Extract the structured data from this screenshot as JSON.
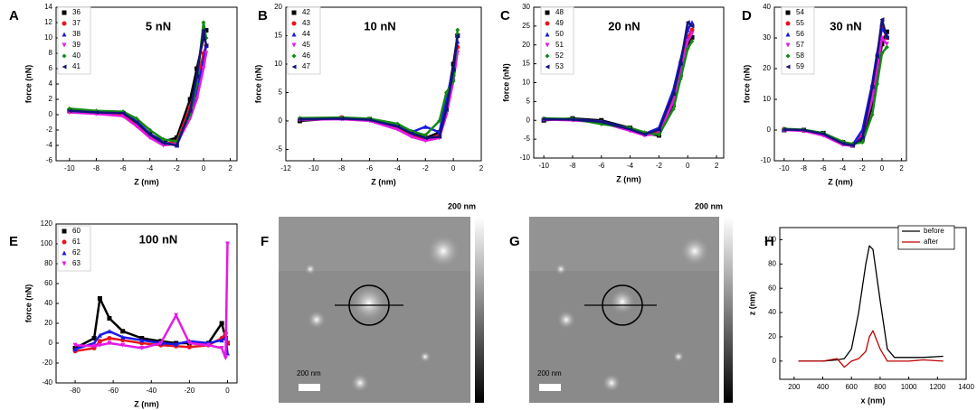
{
  "chart_data": [
    {
      "type": "line",
      "panel": "A",
      "title": "5 nN",
      "xlabel": "Z (nm)",
      "ylabel": "force (nN)",
      "markers": true,
      "x": [
        -10,
        -8,
        -6,
        -5,
        -4,
        -3,
        -2,
        -1,
        -0.5,
        0,
        0.2
      ],
      "series": [
        {
          "name": "36",
          "color": "#000000",
          "marker": "square",
          "values": [
            0.5,
            0.3,
            0.2,
            -1,
            -2.5,
            -3.5,
            -3,
            2,
            6,
            10,
            11
          ]
        },
        {
          "name": "37",
          "color": "#e8141c",
          "marker": "circle",
          "values": [
            0.4,
            0.2,
            0,
            -1.2,
            -2.8,
            -3.8,
            -3.5,
            1,
            4,
            8,
            9
          ]
        },
        {
          "name": "38",
          "color": "#1a1ae6",
          "marker": "triangle-up",
          "values": [
            0.6,
            0.4,
            0.3,
            -0.8,
            -2.5,
            -3.6,
            -4,
            0,
            3,
            7,
            9
          ]
        },
        {
          "name": "39",
          "color": "#e619e6",
          "marker": "triangle-down",
          "values": [
            0.3,
            0.1,
            -0.2,
            -1.5,
            -3,
            -4,
            -3.8,
            -0.5,
            2,
            6,
            8
          ]
        },
        {
          "name": "40",
          "color": "#138a13",
          "marker": "diamond",
          "values": [
            0.8,
            0.5,
            0.4,
            -0.5,
            -2,
            -3.2,
            -3.5,
            0,
            4,
            12,
            10
          ]
        },
        {
          "name": "41",
          "color": "#14147a",
          "marker": "triangle-left",
          "values": [
            0.5,
            0.3,
            0.2,
            -1,
            -2.6,
            -3.7,
            -4,
            0.5,
            5,
            11,
            9
          ]
        }
      ],
      "xlim": [
        -11,
        2.5
      ],
      "ylim": [
        -6,
        14
      ],
      "xticks": [
        -10,
        -8,
        -6,
        -4,
        -2,
        0,
        2
      ],
      "yticks": [
        -6,
        -4,
        -2,
        0,
        2,
        4,
        6,
        8,
        10,
        12,
        14
      ]
    },
    {
      "type": "line",
      "panel": "B",
      "title": "10 nN",
      "xlabel": "Z (nm)",
      "ylabel": "force (nN)",
      "markers": true,
      "x": [
        -11,
        -8,
        -6,
        -4,
        -3,
        -2,
        -1,
        -0.5,
        0,
        0.3
      ],
      "series": [
        {
          "name": "42",
          "color": "#000000",
          "marker": "square",
          "values": [
            0,
            0.5,
            0.3,
            -1,
            -2,
            -3,
            -2,
            3,
            10,
            15
          ]
        },
        {
          "name": "43",
          "color": "#e8141c",
          "marker": "circle",
          "values": [
            0.3,
            0.6,
            0.2,
            -1.2,
            -2.5,
            -3.2,
            -2.5,
            2,
            8,
            13
          ]
        },
        {
          "name": "44",
          "color": "#1a1ae6",
          "marker": "triangle-up",
          "values": [
            0.4,
            0.5,
            0.3,
            -0.8,
            -2,
            -1,
            -2,
            4,
            9,
            14
          ]
        },
        {
          "name": "45",
          "color": "#e619e6",
          "marker": "triangle-down",
          "values": [
            0.2,
            0.3,
            0,
            -1.5,
            -2.8,
            -3.5,
            -3,
            1,
            7,
            12
          ]
        },
        {
          "name": "46",
          "color": "#138a13",
          "marker": "diamond",
          "values": [
            0.5,
            0.6,
            0.4,
            -0.5,
            -1.8,
            -2.5,
            0,
            5,
            7,
            16
          ]
        },
        {
          "name": "47",
          "color": "#14147a",
          "marker": "triangle-left",
          "values": [
            0.3,
            0.4,
            0.2,
            -1,
            -2.2,
            -3,
            -2.8,
            2,
            9,
            15
          ]
        }
      ],
      "xlim": [
        -12,
        2
      ],
      "ylim": [
        -7,
        20
      ],
      "xticks": [
        -12,
        -10,
        -8,
        -6,
        -4,
        -2,
        0,
        2
      ],
      "yticks": [
        -5,
        0,
        5,
        10,
        15,
        20
      ]
    },
    {
      "type": "line",
      "panel": "C",
      "title": "20 nN",
      "xlabel": "Z (nm)",
      "ylabel": "force (nN)",
      "markers": true,
      "x": [
        -10,
        -8,
        -6,
        -4,
        -3,
        -2,
        -1,
        -0.5,
        0,
        0.3
      ],
      "series": [
        {
          "name": "48",
          "color": "#000000",
          "marker": "square",
          "values": [
            0,
            0.5,
            0,
            -2,
            -3.5,
            -4,
            4,
            12,
            20,
            22
          ]
        },
        {
          "name": "49",
          "color": "#e8141c",
          "marker": "circle",
          "values": [
            0.3,
            0.2,
            -0.5,
            -2.5,
            -3.8,
            -3,
            6,
            14,
            22,
            24
          ]
        },
        {
          "name": "50",
          "color": "#1a1ae6",
          "marker": "triangle-up",
          "values": [
            0.4,
            0.3,
            -0.3,
            -2.2,
            -3.6,
            -2,
            8,
            16,
            24,
            26
          ]
        },
        {
          "name": "51",
          "color": "#e619e6",
          "marker": "triangle-down",
          "values": [
            0.2,
            0,
            -0.6,
            -2.8,
            -4,
            -3.5,
            5,
            13,
            21,
            23
          ]
        },
        {
          "name": "52",
          "color": "#138a13",
          "marker": "diamond",
          "values": [
            0.5,
            0.4,
            -1,
            -2,
            -3.2,
            -3.8,
            3,
            11,
            19,
            21
          ]
        },
        {
          "name": "53",
          "color": "#14147a",
          "marker": "triangle-left",
          "values": [
            0.3,
            0.2,
            -0.4,
            -2.4,
            -3.7,
            -2.5,
            7,
            15,
            26,
            25
          ]
        }
      ],
      "xlim": [
        -10.7,
        2.5
      ],
      "ylim": [
        -10,
        30
      ],
      "xticks": [
        -10,
        -8,
        -6,
        -4,
        -2,
        0,
        2
      ],
      "yticks": [
        -10,
        -5,
        0,
        5,
        10,
        15,
        20,
        25,
        30
      ]
    },
    {
      "type": "line",
      "panel": "D",
      "title": "30 nN",
      "xlabel": "Z (nm)",
      "ylabel": "force (nN)",
      "markers": true,
      "x": [
        -10,
        -8,
        -6,
        -4,
        -3,
        -2,
        -1,
        -0.5,
        0,
        0.5
      ],
      "series": [
        {
          "name": "54",
          "color": "#000000",
          "marker": "square",
          "values": [
            0,
            0,
            -1,
            -4,
            -5,
            -3,
            8,
            18,
            28,
            32
          ]
        },
        {
          "name": "55",
          "color": "#e8141c",
          "marker": "circle",
          "values": [
            0.3,
            -0.2,
            -1.5,
            -4.5,
            -5,
            -1,
            12,
            22,
            34,
            30
          ]
        },
        {
          "name": "56",
          "color": "#1a1ae6",
          "marker": "triangle-up",
          "values": [
            0.2,
            0,
            -1.2,
            -4.2,
            -4.8,
            0,
            15,
            25,
            33,
            31
          ]
        },
        {
          "name": "57",
          "color": "#e619e6",
          "marker": "triangle-down",
          "values": [
            0,
            -0.3,
            -1.8,
            -4.8,
            -5.2,
            -2,
            10,
            20,
            30,
            28
          ]
        },
        {
          "name": "58",
          "color": "#138a13",
          "marker": "diamond",
          "values": [
            0.4,
            0.1,
            -1,
            -3.8,
            -4.5,
            -4,
            5,
            15,
            25,
            27
          ]
        },
        {
          "name": "59",
          "color": "#14147a",
          "marker": "triangle-left",
          "values": [
            0.2,
            0,
            -1.3,
            -4.4,
            -5,
            -2.5,
            14,
            24,
            36,
            30
          ]
        }
      ],
      "xlim": [
        -11,
        2.5
      ],
      "ylim": [
        -10,
        40
      ],
      "xticks": [
        -10,
        -8,
        -6,
        -4,
        -2,
        0,
        2
      ],
      "yticks": [
        -10,
        0,
        10,
        20,
        30,
        40
      ]
    },
    {
      "type": "line",
      "panel": "E",
      "title": "100 nN",
      "xlabel": "Z (nm)",
      "ylabel": "force (nN)",
      "markers": true,
      "x": [
        -80,
        -70,
        -67,
        -62,
        -55,
        -45,
        -35,
        -27,
        -20,
        -10,
        -3,
        -1,
        0
      ],
      "series": [
        {
          "name": "60",
          "color": "#000000",
          "marker": "square",
          "values": [
            -5,
            5,
            45,
            25,
            12,
            5,
            2,
            0,
            0,
            0,
            20,
            5,
            0
          ]
        },
        {
          "name": "61",
          "color": "#e8141c",
          "marker": "circle",
          "values": [
            -8,
            -5,
            2,
            5,
            3,
            0,
            -2,
            -3,
            -4,
            -2,
            5,
            10,
            0
          ]
        },
        {
          "name": "62",
          "color": "#1a1ae6",
          "marker": "triangle-up",
          "values": [
            -6,
            0,
            8,
            12,
            6,
            3,
            0,
            -1,
            2,
            0,
            3,
            5,
            -10
          ]
        },
        {
          "name": "63",
          "color": "#e619e6",
          "marker": "triangle-down",
          "values": [
            -2,
            -3,
            -2,
            0,
            -2,
            -5,
            0,
            28,
            0,
            -2,
            -5,
            -15,
            100
          ]
        }
      ],
      "xlim": [
        -90,
        5
      ],
      "ylim": [
        -40,
        120
      ],
      "xticks": [
        -80,
        -60,
        -40,
        -20,
        0
      ],
      "yticks": [
        -40,
        -20,
        0,
        20,
        40,
        60,
        80,
        100,
        120
      ]
    },
    {
      "type": "line",
      "panel": "H",
      "xlabel": "x (nm)",
      "ylabel": "z (nm)",
      "markers": false,
      "x": [
        230,
        400,
        500,
        550,
        600,
        650,
        700,
        725,
        750,
        800,
        850,
        900,
        1000,
        1100,
        1240
      ],
      "series": [
        {
          "name": "before",
          "color": "#000000",
          "values": [
            0,
            0,
            1,
            2,
            10,
            40,
            80,
            95,
            92,
            50,
            10,
            3,
            3,
            3,
            4
          ]
        },
        {
          "name": "after",
          "color": "#c00000",
          "values": [
            0,
            0,
            2,
            -5,
            0,
            2,
            8,
            20,
            25,
            10,
            0,
            0,
            0,
            1,
            0
          ]
        }
      ],
      "xlim": [
        100,
        1400
      ],
      "ylim": [
        -15,
        110
      ],
      "xticks": [
        200,
        400,
        600,
        800,
        1000,
        1200,
        1400
      ],
      "yticks": [
        0,
        20,
        40,
        60,
        80,
        100
      ]
    }
  ],
  "images": [
    {
      "panel": "F",
      "height_scale": "200 nm",
      "scale_bar": "200 nm"
    },
    {
      "panel": "G",
      "height_scale": "200 nm",
      "scale_bar": "200 nm"
    }
  ]
}
